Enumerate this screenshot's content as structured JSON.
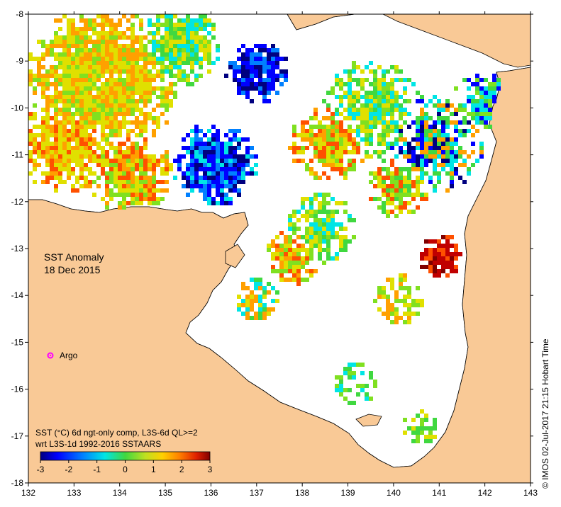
{
  "map": {
    "title_line1": "SST Anomaly",
    "title_line2": "18 Dec 2015",
    "legend_marker_label": "Argo",
    "caption_line1": "SST (°C) 6d ngt-only comp, L3S-6d QL>=2",
    "caption_line2": "wrt L3S-1d 1992-2016 SSTAARS",
    "credit": "© IMOS 02-Jul-2017 21:15 Hobart Time",
    "x_ticks": [
      "132",
      "133",
      "134",
      "135",
      "136",
      "137",
      "138",
      "139",
      "140",
      "141",
      "142",
      "143"
    ],
    "y_ticks": [
      "-8",
      "-9",
      "-10",
      "-11",
      "-12",
      "-13",
      "-14",
      "-15",
      "-16",
      "-17",
      "-18"
    ],
    "colorbar_ticks": [
      "-3",
      "-2",
      "-1",
      "0",
      "1",
      "2",
      "3"
    ],
    "colorbar_range": [
      -3,
      3
    ],
    "x_range": [
      132,
      143
    ],
    "y_range": [
      -18,
      -8
    ],
    "colors": {
      "land": "#f9c996",
      "no_data": "#ffffff",
      "coast": "#000000",
      "argo_marker": "#ff00ff",
      "scale": [
        "#00007f",
        "#0000ff",
        "#0080ff",
        "#00e5e5",
        "#40d840",
        "#80e020",
        "#e0e000",
        "#ffa000",
        "#ff5000",
        "#c00000",
        "#800000"
      ]
    }
  }
}
